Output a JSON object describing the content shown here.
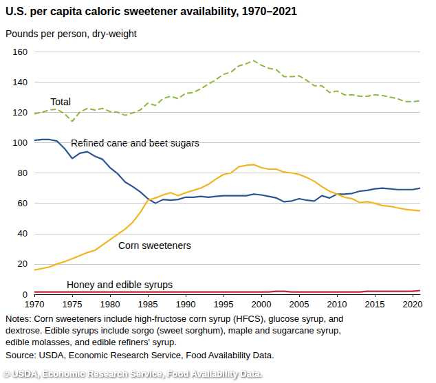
{
  "chart_data": {
    "type": "line",
    "title": "U.S. per capita caloric sweetener availability, 1970–2021",
    "ylabel": "Pounds per person, dry-weight",
    "notes": [
      "Notes: Corn sweeteners include high-fructose corn syrup (HFCS), glucose syrup, and",
      "dextrose. Edible syrups include sorgo (sweet sorghum), maple and sugarcane syrup,",
      "edible molasses, and edible refiners' syrup."
    ],
    "source": "Source: USDA, Economic Research Service, Food Availability Data.",
    "credit": "© USDA, Economic Research Service, Food Availability Data.",
    "x": [
      1970,
      1971,
      1972,
      1973,
      1974,
      1975,
      1976,
      1977,
      1978,
      1979,
      1980,
      1981,
      1982,
      1983,
      1984,
      1985,
      1986,
      1987,
      1988,
      1989,
      1990,
      1991,
      1992,
      1993,
      1994,
      1995,
      1996,
      1997,
      1998,
      1999,
      2000,
      2001,
      2002,
      2003,
      2004,
      2005,
      2006,
      2007,
      2008,
      2009,
      2010,
      2011,
      2012,
      2013,
      2014,
      2015,
      2016,
      2017,
      2018,
      2019,
      2020,
      2021
    ],
    "series": [
      {
        "name": "Total",
        "color": "#8cb83c",
        "line_style": "dashed",
        "marker": "none",
        "values": [
          119,
          120,
          121.5,
          122,
          119,
          114,
          120,
          122.5,
          121.5,
          122.5,
          120.5,
          120,
          118,
          119.5,
          121.5,
          126,
          124.5,
          129,
          130.5,
          129,
          132.5,
          133,
          135.5,
          138.5,
          141.5,
          145,
          146.5,
          150.5,
          152,
          154,
          151,
          149,
          148,
          143.5,
          143.5,
          144,
          141,
          137.5,
          137.5,
          133,
          134,
          131.5,
          131.5,
          130.5,
          130.5,
          131.5,
          131,
          130,
          129,
          127,
          127,
          127.5
        ]
      },
      {
        "name": "Refined cane and beet sugars",
        "color": "#2b5592",
        "line_style": "solid",
        "marker": "none",
        "values": [
          101.5,
          102,
          102,
          101,
          96,
          89.5,
          93,
          94,
          91,
          89,
          83.5,
          79.5,
          74,
          71,
          67.5,
          63,
          60,
          62.5,
          62,
          62.5,
          64,
          64,
          64.5,
          64,
          64.5,
          65,
          65,
          65,
          65,
          66,
          65.5,
          64.5,
          63.5,
          61,
          61.5,
          63,
          62,
          61.5,
          65,
          63.5,
          66,
          66,
          66.5,
          68,
          68.5,
          69.5,
          70,
          69.5,
          69,
          69,
          69,
          70
        ]
      },
      {
        "name": "Corn sweeteners",
        "color": "#f2b420",
        "line_style": "solid",
        "marker": "none",
        "values": [
          16,
          17,
          18,
          20,
          21.5,
          23.5,
          25.5,
          27.5,
          29,
          32.5,
          36,
          39.5,
          43,
          47.5,
          54,
          62,
          63.5,
          65.5,
          67,
          65,
          67,
          68.5,
          70,
          72.5,
          76,
          79,
          80,
          84,
          85,
          85.5,
          83.5,
          82.5,
          82.5,
          80.5,
          80,
          79,
          77,
          74.5,
          71,
          68,
          66,
          64,
          63,
          60.5,
          61,
          60,
          58.5,
          58,
          57,
          56,
          55.5,
          55
        ]
      },
      {
        "name": "Honey and edible syrups",
        "color": "#c0262d",
        "line_style": "solid",
        "marker": "none",
        "values": [
          1.5,
          1.5,
          1.5,
          1.5,
          1.5,
          1.5,
          1.5,
          1.5,
          1.5,
          1.5,
          1.5,
          1.5,
          1.5,
          1.5,
          1.5,
          1.5,
          1.5,
          1.5,
          1.5,
          1.5,
          1.5,
          1.5,
          1.5,
          1.5,
          1.5,
          1.5,
          1.5,
          1.5,
          1.5,
          1.5,
          1.5,
          1.5,
          2,
          2,
          1.5,
          1.5,
          1.5,
          1.5,
          1.5,
          1.5,
          1.5,
          1.5,
          1.5,
          1.5,
          2,
          2,
          2,
          2,
          2,
          2,
          2,
          2.5
        ]
      }
    ],
    "xlim": [
      1970,
      2021
    ],
    "xticks": [
      1970,
      1975,
      1980,
      1985,
      1990,
      1995,
      2000,
      2005,
      2010,
      2015,
      2020
    ],
    "ylim": [
      0,
      160
    ],
    "yticks": [
      0,
      20,
      40,
      60,
      80,
      100,
      120,
      140,
      160
    ],
    "grid": true
  }
}
